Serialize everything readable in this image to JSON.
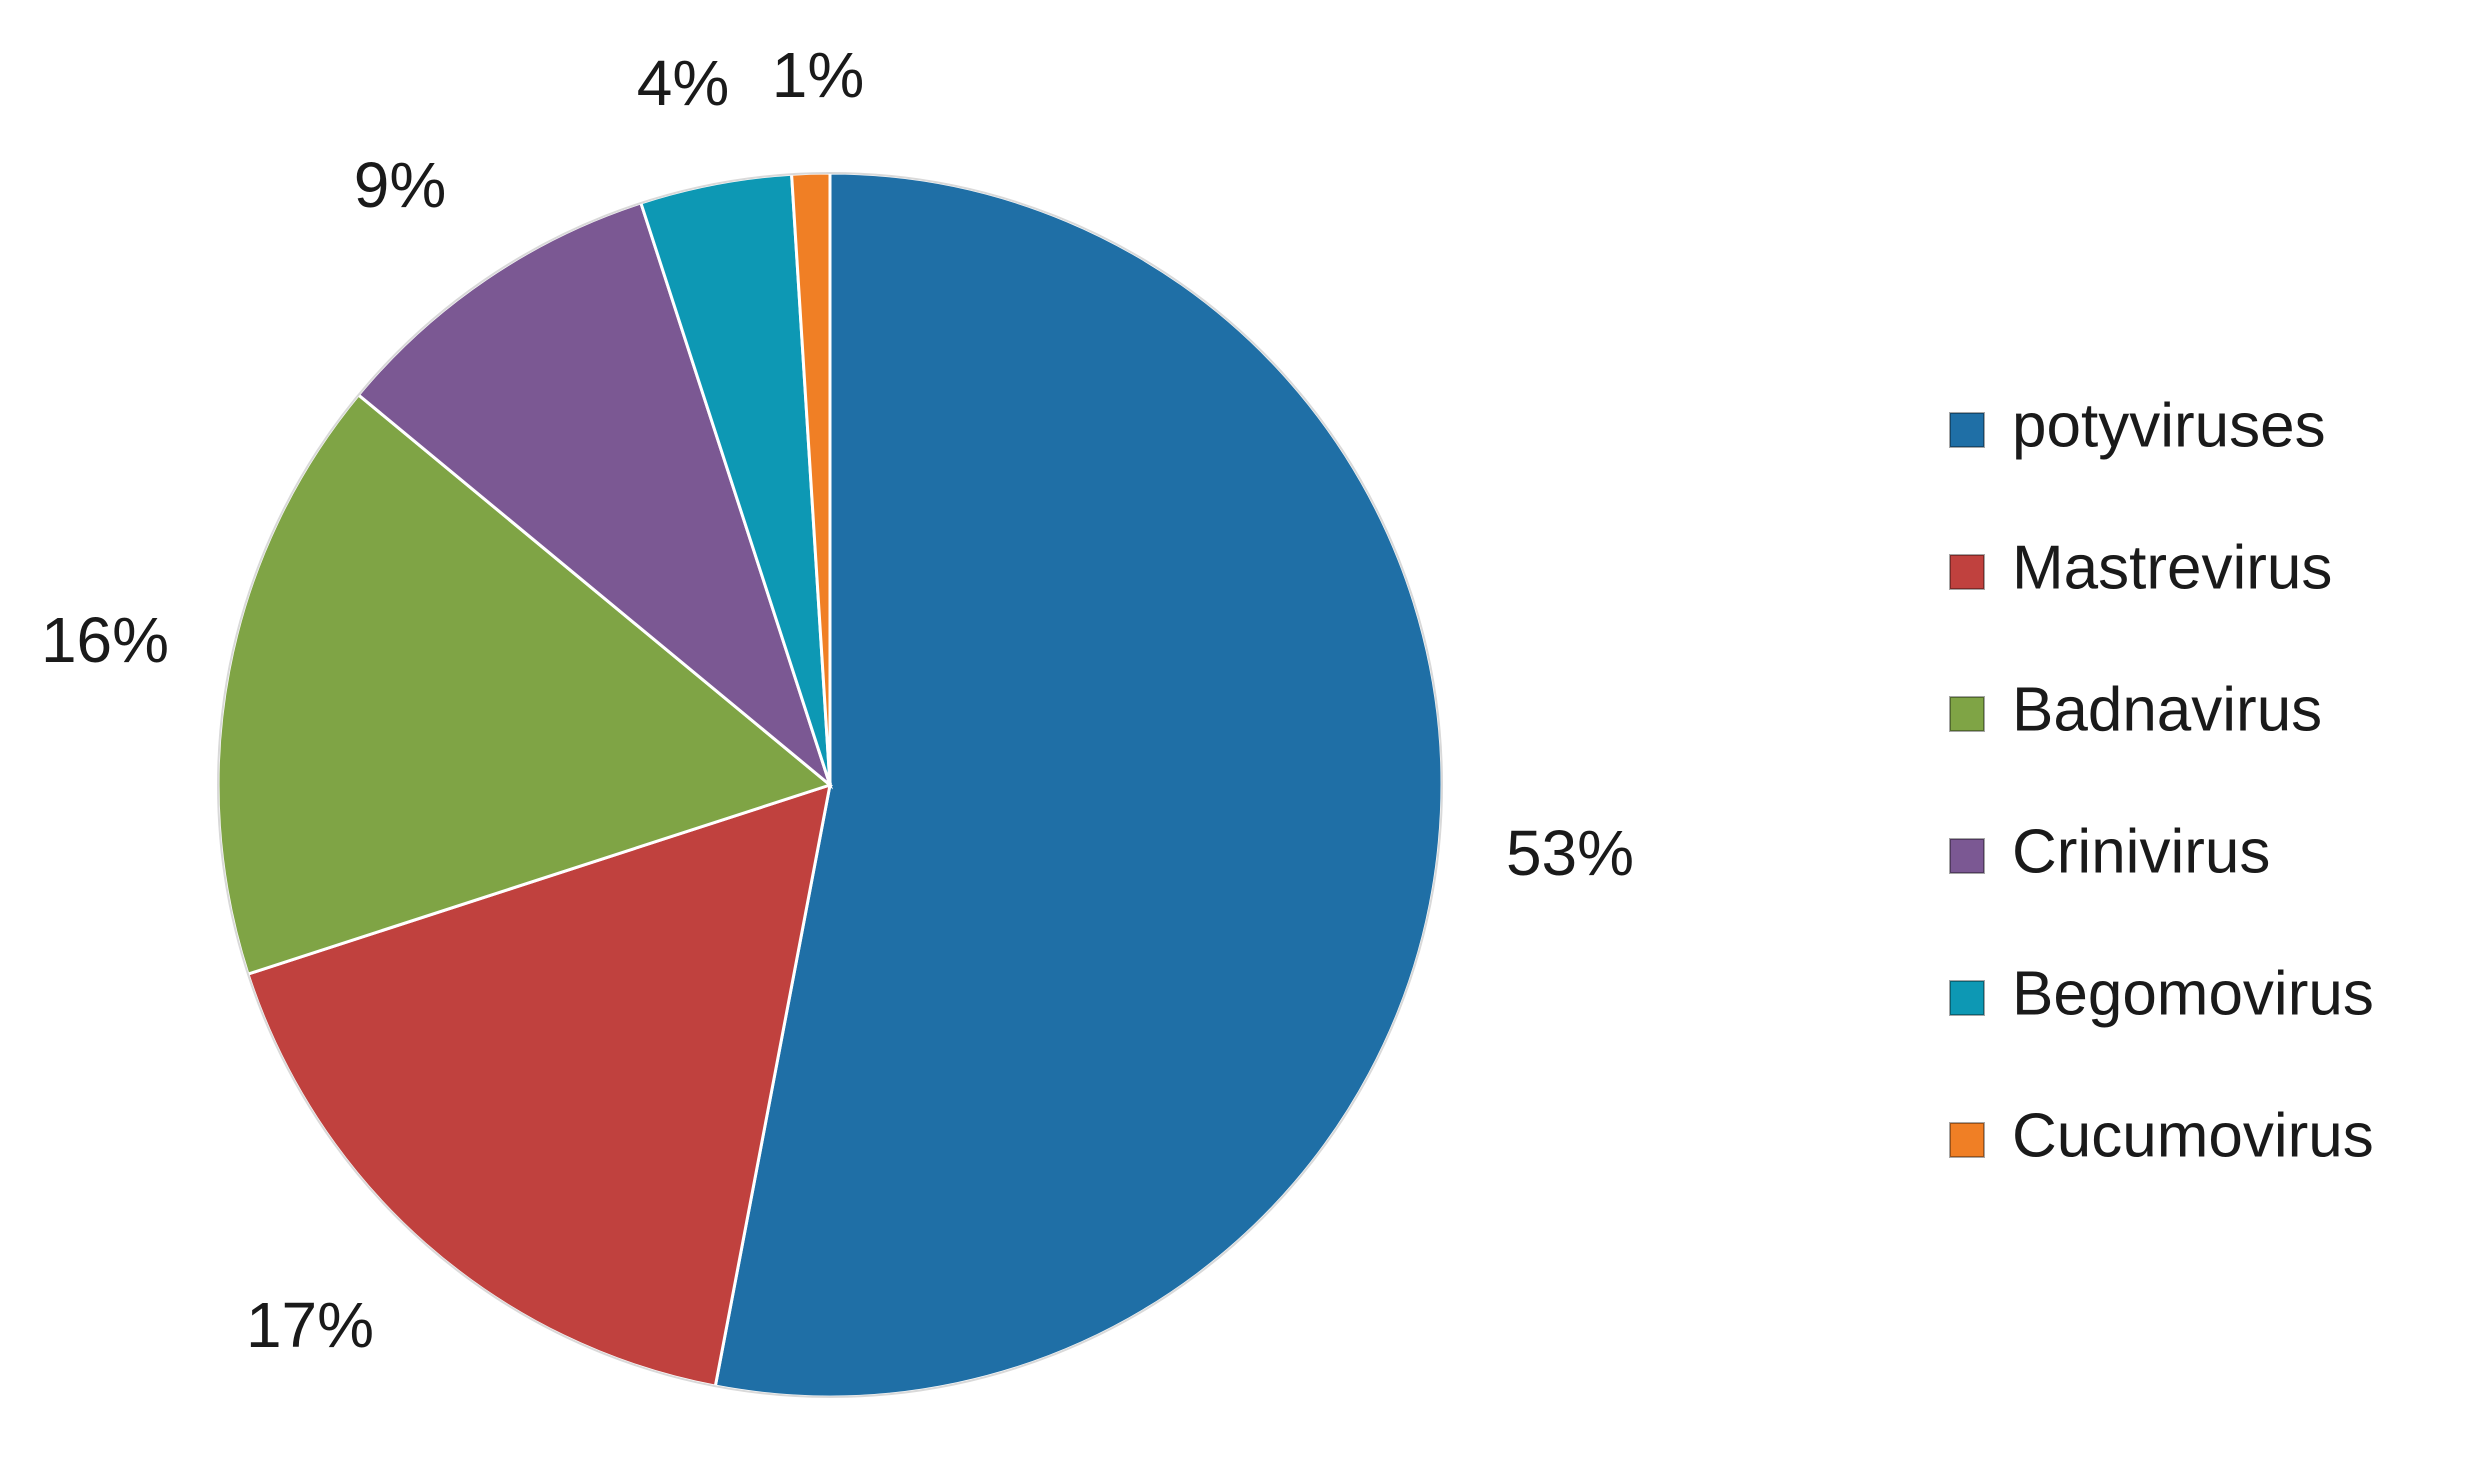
{
  "chart_data": {
    "type": "pie",
    "categories": [
      "potyviruses",
      "Mastrevirus",
      "Badnavirus",
      "Crinivirus",
      "Begomovirus",
      "Cucumovirus"
    ],
    "values": [
      53,
      17,
      16,
      9,
      4,
      1
    ],
    "value_labels": [
      "53%",
      "17%",
      "16%",
      "9%",
      "4%",
      "1%"
    ],
    "colors": [
      "#1f6fa6",
      "#c0413e",
      "#7fa445",
      "#7b5893",
      "#0d98b4",
      "#f07f25"
    ],
    "start_angle_deg": 0,
    "direction": "clockwise",
    "legend_position": "right"
  }
}
